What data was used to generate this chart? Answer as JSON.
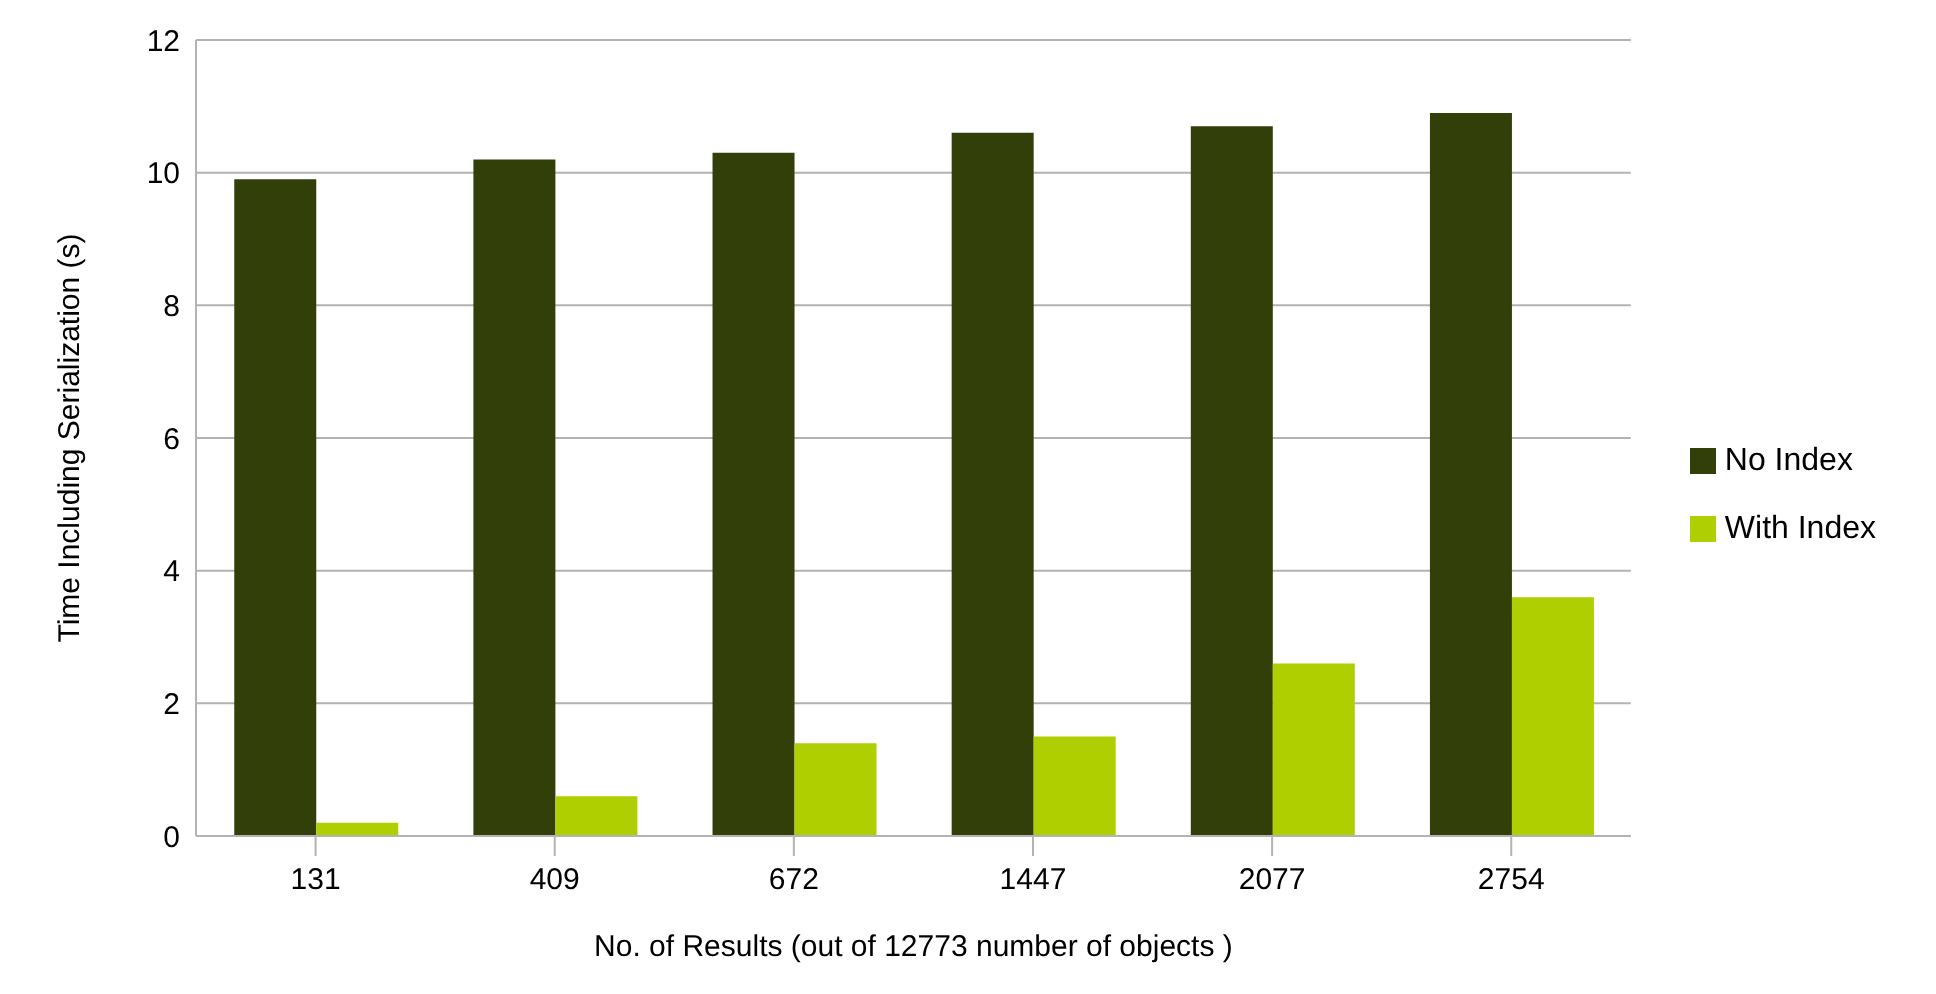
{
  "chart_data": {
    "type": "bar",
    "xlabel": "No. of Results (out of 12773 number of objects )",
    "ylabel": "Time Including Serialization (s)",
    "categories": [
      "131",
      "409",
      "672",
      "1447",
      "2077",
      "2754"
    ],
    "series": [
      {
        "name": "No Index",
        "color": "#323f08",
        "values": [
          9.9,
          10.2,
          10.3,
          10.6,
          10.7,
          10.9
        ]
      },
      {
        "name": "With Index",
        "color": "#b0cf00",
        "values": [
          0.2,
          0.6,
          1.4,
          1.5,
          2.6,
          3.6
        ]
      }
    ],
    "ylim": [
      0,
      12
    ],
    "yticks": [
      0,
      2,
      4,
      6,
      8,
      10,
      12
    ],
    "grid": "y",
    "legend": "right"
  }
}
